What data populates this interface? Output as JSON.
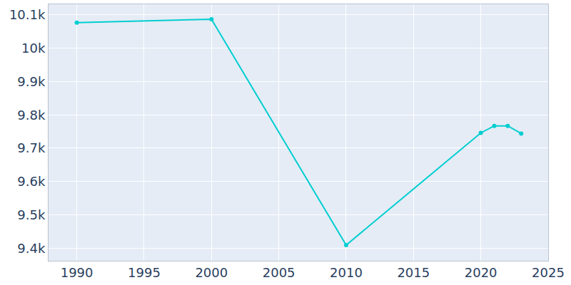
{
  "chart_data": {
    "type": "line",
    "x": [
      1990,
      2000,
      2010,
      2020,
      2021,
      2022,
      2023
    ],
    "values": [
      10077,
      10087,
      9409,
      9746,
      9767,
      9767,
      9744
    ],
    "color": "#00CED1",
    "marker": "circle",
    "xlim": [
      1987.9,
      2025
    ],
    "xticks": [
      1990,
      1995,
      2000,
      2005,
      2010,
      2015,
      2020,
      2025
    ],
    "ylim": [
      9362,
      10132
    ],
    "yticks": [
      {
        "value": 9400,
        "label": "9.4k"
      },
      {
        "value": 9500,
        "label": "9.5k"
      },
      {
        "value": 9600,
        "label": "9.6k"
      },
      {
        "value": 9700,
        "label": "9.7k"
      },
      {
        "value": 9800,
        "label": "9.8k"
      },
      {
        "value": 9900,
        "label": "9.9k"
      },
      {
        "value": 10000,
        "label": "10k"
      },
      {
        "value": 10100,
        "label": "10.1k"
      }
    ],
    "grid": true
  }
}
